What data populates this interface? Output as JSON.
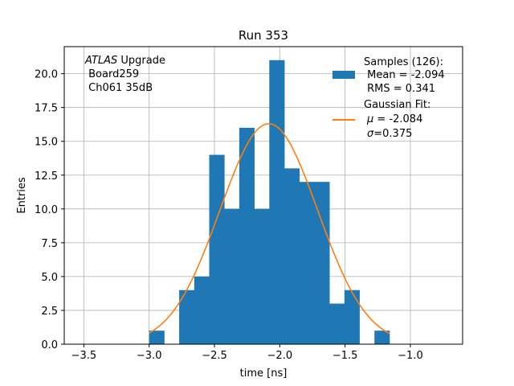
{
  "chart_data": {
    "type": "bar",
    "title": "Run 353",
    "xlabel": "time [ns]",
    "ylabel": "Entries",
    "xlim": [
      -3.65,
      -0.6
    ],
    "ylim": [
      0,
      22
    ],
    "grid": true,
    "xticks": [
      -3.5,
      -3.0,
      -2.5,
      -2.0,
      -1.5,
      -1.0
    ],
    "xtick_labels": [
      "−3.5",
      "−3.0",
      "−2.5",
      "−2.0",
      "−1.5",
      "−1.0"
    ],
    "yticks": [
      0,
      2.5,
      5,
      7.5,
      10,
      12.5,
      15,
      17.5,
      20
    ],
    "ytick_labels": [
      "0.0",
      "2.5",
      "5.0",
      "7.5",
      "10.0",
      "12.5",
      "15.0",
      "17.5",
      "20.0"
    ],
    "bin_edges": [
      -3.0,
      -2.885,
      -2.77,
      -2.655,
      -2.54,
      -2.425,
      -2.31,
      -2.195,
      -2.08,
      -1.965,
      -1.85,
      -1.735,
      -1.62,
      -1.505,
      -1.39,
      -1.275,
      -1.16
    ],
    "counts": [
      1,
      0,
      4,
      5,
      14,
      10,
      16,
      10,
      21,
      13,
      12,
      12,
      3,
      4,
      0,
      1
    ],
    "bar_color": "#1f77b4",
    "fit": {
      "mu": -2.084,
      "sigma": 0.375,
      "peak": 16.3,
      "x_range": [
        -3.0,
        -1.16
      ],
      "color": "#ff7f0e"
    },
    "annotation": {
      "italic": "ATLAS",
      "line1_rest": " Upgrade",
      "line2": " Board259",
      "line3": " Ch061 35dB"
    },
    "legend": {
      "position": "top-right",
      "hist_lines": [
        "Samples (126):",
        " Mean = -2.094",
        " RMS = 0.341"
      ],
      "fit_title": "Gaussian Fit:",
      "fit_mu_sym": "μ",
      "fit_mu_val": " = -2.084",
      "fit_sigma_sym": "σ",
      "fit_sigma_val": "=0.375"
    }
  }
}
